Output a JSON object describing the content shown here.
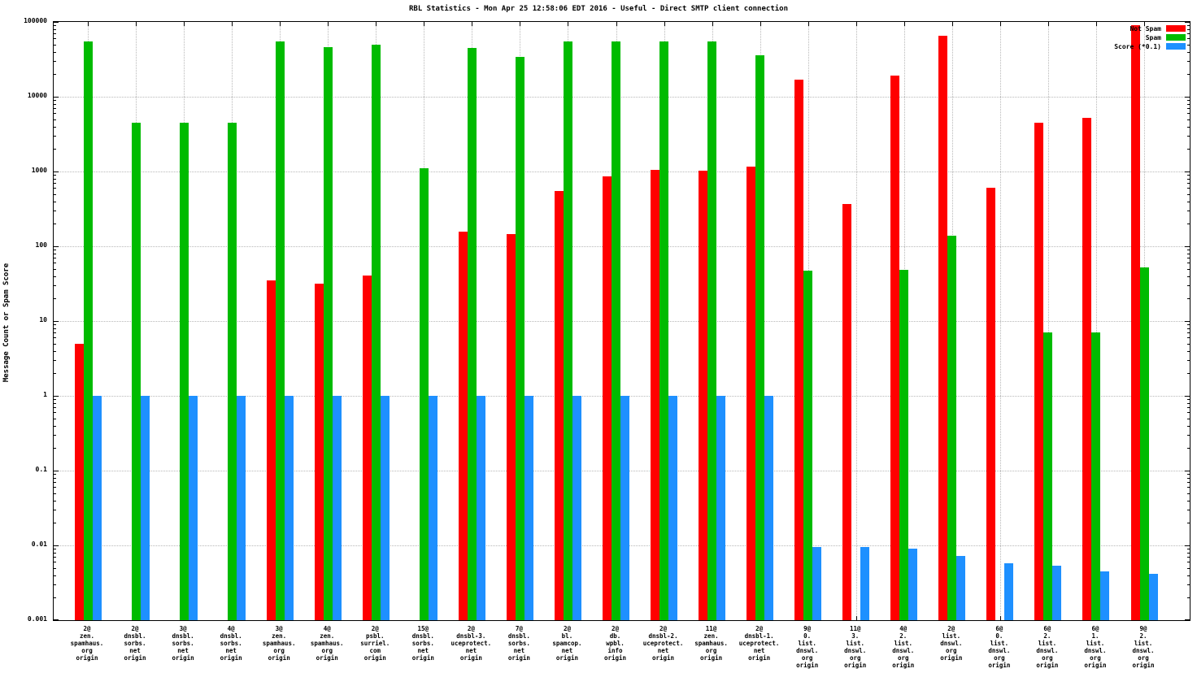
{
  "title": "RBL Statistics - Mon Apr 25 12:58:06 EDT 2016 - Useful - Direct SMTP client connection",
  "y_axis_title": "Message Count or Spam Score",
  "legend": [
    {
      "label": "Not Spam",
      "color": "#ff0000"
    },
    {
      "label": "Spam",
      "color": "#00bb00"
    },
    {
      "label": "Score (*0.1)",
      "color": "#1e90ff"
    }
  ],
  "chart_data": {
    "type": "bar",
    "scale": "log",
    "grid": true,
    "legend_position": "top-right",
    "title": "RBL Statistics - Mon Apr 25 12:58:06 EDT 2016 - Useful - Direct SMTP client connection",
    "xlabel": "",
    "ylabel": "Message Count or Spam Score",
    "ylim": [
      0.001,
      100000
    ],
    "y_ticks": [
      "100000",
      "10000",
      "1000",
      "100",
      "10",
      "1",
      "0.1",
      "0.01",
      "0.001"
    ],
    "categories": [
      [
        "2@",
        "zen.",
        "spamhaus.",
        "org",
        "origin"
      ],
      [
        "2@",
        "dnsbl.",
        "sorbs.",
        "net",
        "origin"
      ],
      [
        "3@",
        "dnsbl.",
        "sorbs.",
        "net",
        "origin"
      ],
      [
        "4@",
        "dnsbl.",
        "sorbs.",
        "net",
        "origin"
      ],
      [
        "3@",
        "zen.",
        "spamhaus.",
        "org",
        "origin"
      ],
      [
        "4@",
        "zen.",
        "spamhaus.",
        "org",
        "origin"
      ],
      [
        "2@",
        "psbl.",
        "surriel.",
        "com",
        "origin"
      ],
      [
        "15@",
        "dnsbl.",
        "sorbs.",
        "net",
        "origin"
      ],
      [
        "2@",
        "dnsbl-3.",
        "uceprotect.",
        "net",
        "origin"
      ],
      [
        "7@",
        "dnsbl.",
        "sorbs.",
        "net",
        "origin"
      ],
      [
        "2@",
        "bl.",
        "spamcop.",
        "net",
        "origin"
      ],
      [
        "2@",
        "db.",
        "wpbl.",
        "info",
        "origin"
      ],
      [
        "2@",
        "dnsbl-2.",
        "uceprotect.",
        "net",
        "origin"
      ],
      [
        "11@",
        "zen.",
        "spamhaus.",
        "org",
        "origin"
      ],
      [
        "2@",
        "dnsbl-1.",
        "uceprotect.",
        "net",
        "origin"
      ],
      [
        "9@",
        "0.",
        "list.",
        "dnswl.",
        "org",
        "origin"
      ],
      [
        "11@",
        "3.",
        "list.",
        "dnswl.",
        "org",
        "origin"
      ],
      [
        "4@",
        "2.",
        "list.",
        "dnswl.",
        "org",
        "origin"
      ],
      [
        "2@",
        "list.",
        "dnswl.",
        "org",
        "origin"
      ],
      [
        "6@",
        "0.",
        "list.",
        "dnswl.",
        "org",
        "origin"
      ],
      [
        "6@",
        "2.",
        "list.",
        "dnswl.",
        "org",
        "origin"
      ],
      [
        "6@",
        "1.",
        "list.",
        "dnswl.",
        "org",
        "origin"
      ],
      [
        "9@",
        "2.",
        "list.",
        "dnswl.",
        "org",
        "origin"
      ]
    ],
    "series": [
      {
        "name": "Not Spam",
        "color": "#ff0000",
        "values": [
          5,
          null,
          null,
          null,
          35,
          32,
          41,
          null,
          155,
          145,
          550,
          850,
          1050,
          1020,
          1150,
          17000,
          370,
          19000,
          65000,
          600,
          4500,
          5200,
          90000
        ]
      },
      {
        "name": "Spam",
        "color": "#00bb00",
        "values": [
          55000,
          4500,
          4500,
          4500,
          55000,
          46000,
          50000,
          1100,
          45000,
          34000,
          55000,
          55000,
          55000,
          55000,
          36000,
          47,
          null,
          49,
          140,
          null,
          7,
          7,
          52
        ]
      },
      {
        "name": "Score (*0.1)",
        "color": "#1e90ff",
        "values": [
          1,
          1,
          1,
          1,
          1,
          1,
          1,
          1,
          1,
          1,
          1,
          1,
          1,
          1,
          1,
          0.0095,
          0.0095,
          0.009,
          0.0072,
          0.0058,
          0.0053,
          0.0045,
          0.0042
        ]
      }
    ]
  }
}
